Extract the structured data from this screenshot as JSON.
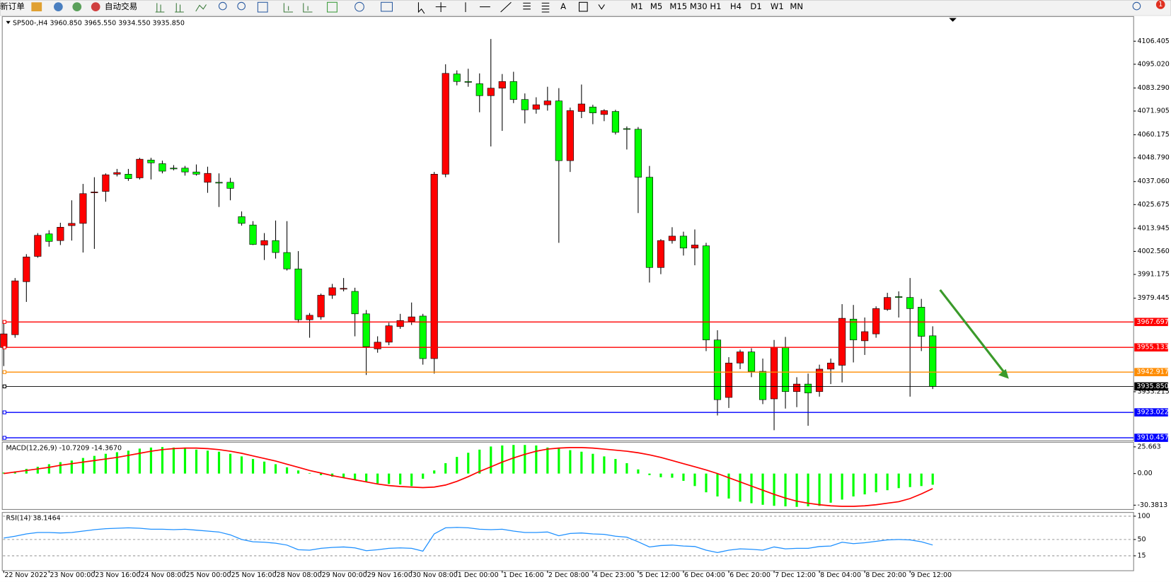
{
  "toolbar": {
    "new_order": "新订单",
    "auto_trading": "自动交易",
    "text_tool": "A",
    "badge": "1",
    "timeframes": [
      "M1",
      "M5",
      "M15",
      "M30",
      "H1",
      "H4",
      "D1",
      "W1",
      "MN"
    ]
  },
  "chart_data": [
    {
      "type": "candlestick",
      "title": "SP500-,H4 3960.850 3965.550 3934.550 3935.850",
      "x": [
        "22 Nov 2022",
        null,
        null,
        null,
        "23 Nov 00:00",
        null,
        null,
        null,
        "23 Nov 16:00",
        null,
        null,
        null,
        "24 Nov 08:00",
        null,
        null,
        null,
        "25 Nov 00:00",
        null,
        null,
        null,
        "25 Nov 16:00",
        null,
        null,
        null,
        "28 Nov 08:00",
        null,
        null,
        null,
        "29 Nov 00:00",
        null,
        null,
        null,
        "29 Nov 16:00",
        null,
        null,
        null,
        "30 Nov 08:00",
        null,
        null,
        null,
        "1 Dec 00:00",
        null,
        null,
        null,
        "1 Dec 16:00",
        null,
        null,
        null,
        "2 Dec 08:00",
        null,
        null,
        null,
        "4 Dec 23:00",
        null,
        null,
        null,
        "5 Dec 12:00",
        null,
        null,
        null,
        "6 Dec 04:00",
        null,
        null,
        null,
        "6 Dec 20:00",
        null,
        null,
        null,
        "7 Dec 12:00",
        null,
        null,
        null,
        "8 Dec 04:00",
        null,
        null,
        null,
        "8 Dec 20:00",
        null,
        null,
        null,
        "9 Dec 12:00",
        null,
        null
      ],
      "ohlc": [
        [
          3955.1,
          3968.0,
          3945.9,
          3961.8
        ],
        [
          3961.4,
          3989.4,
          3959.9,
          3988.0
        ],
        [
          3987.6,
          4001.2,
          3977.6,
          3999.8
        ],
        [
          4000.1,
          4011.6,
          3999.4,
          4010.5
        ],
        [
          4011.2,
          4013.0,
          4004.9,
          4007.5
        ],
        [
          4007.9,
          4016.7,
          4005.7,
          4014.5
        ],
        [
          4015.3,
          4027.8,
          4007.9,
          4016.4
        ],
        [
          4016.4,
          4035.9,
          4002.0,
          4031.1
        ],
        [
          4031.5,
          4039.2,
          4003.8,
          4031.9
        ],
        [
          4032.2,
          4041.1,
          4027.1,
          4040.4
        ],
        [
          4040.7,
          4043.3,
          4039.6,
          4041.5
        ],
        [
          4040.7,
          4043.3,
          4037.4,
          4038.5
        ],
        [
          4038.9,
          4048.8,
          4038.1,
          4048.1
        ],
        [
          4047.7,
          4048.8,
          4038.1,
          4046.3
        ],
        [
          4045.9,
          4047.4,
          4041.1,
          4042.2
        ],
        [
          4043.7,
          4045.2,
          4042.6,
          4043.3
        ],
        [
          4043.7,
          4044.8,
          4040.0,
          4041.8
        ],
        [
          4041.8,
          4045.5,
          4040.0,
          4040.7
        ],
        [
          4036.7,
          4044.4,
          4031.5,
          4041.1
        ],
        [
          4036.7,
          4041.1,
          4024.5,
          4036.3
        ],
        [
          4036.7,
          4038.9,
          4027.8,
          4033.7
        ],
        [
          4019.7,
          4022.3,
          4015.3,
          4016.4
        ],
        [
          4015.6,
          4017.5,
          4005.7,
          4006.0
        ],
        [
          4005.7,
          4011.6,
          3998.3,
          4007.9
        ],
        [
          4007.9,
          4017.8,
          3999.0,
          4002.0
        ],
        [
          4002.0,
          4017.5,
          3993.1,
          3993.9
        ],
        [
          3993.9,
          4002.7,
          3967.3,
          3968.8
        ],
        [
          3968.8,
          3972.1,
          3959.9,
          3971.0
        ],
        [
          3970.2,
          3981.7,
          3968.8,
          3980.9
        ],
        [
          3980.9,
          3986.5,
          3979.1,
          3984.6
        ],
        [
          3983.9,
          3989.4,
          3982.8,
          3984.3
        ],
        [
          3982.8,
          3984.6,
          3960.6,
          3971.7
        ],
        [
          3971.7,
          3973.6,
          3941.5,
          3955.5
        ],
        [
          3954.4,
          3960.6,
          3952.5,
          3957.7
        ],
        [
          3957.7,
          3967.3,
          3956.2,
          3965.8
        ],
        [
          3965.4,
          3971.7,
          3964.3,
          3968.4
        ],
        [
          3968.0,
          3977.3,
          3966.2,
          3970.2
        ],
        [
          3970.6,
          3971.7,
          3946.6,
          3949.6
        ],
        [
          3949.6,
          4041.8,
          3942.2,
          4040.7
        ],
        [
          4040.7,
          4095.0,
          4039.2,
          4090.5
        ],
        [
          4090.2,
          4092.0,
          4084.6,
          4086.5
        ],
        [
          4086.5,
          4092.8,
          4083.9,
          4086.1
        ],
        [
          4085.4,
          4090.5,
          4071.3,
          4079.5
        ],
        [
          4079.5,
          4107.5,
          4054.4,
          4083.2
        ],
        [
          4083.2,
          4090.2,
          4062.1,
          4086.5
        ],
        [
          4086.5,
          4091.3,
          4075.8,
          4077.6
        ],
        [
          4077.6,
          4080.6,
          4065.8,
          4072.5
        ],
        [
          4072.8,
          4078.7,
          4070.6,
          4075.0
        ],
        [
          4075.0,
          4083.9,
          4072.1,
          4076.9
        ],
        [
          4076.9,
          4083.2,
          4006.8,
          4047.4
        ],
        [
          4047.4,
          4073.6,
          4041.8,
          4072.1
        ],
        [
          4071.7,
          4085.0,
          4068.4,
          4075.4
        ],
        [
          4073.9,
          4075.0,
          4065.4,
          4071.0
        ],
        [
          4070.2,
          4072.8,
          4066.9,
          4072.1
        ],
        [
          4071.7,
          4072.5,
          4060.3,
          4061.4
        ],
        [
          4063.2,
          4064.3,
          4052.9,
          4062.9
        ],
        [
          4062.9,
          4064.0,
          4021.5,
          4039.2
        ],
        [
          4039.2,
          4044.8,
          3987.2,
          3994.6
        ],
        [
          3994.6,
          4008.6,
          3991.3,
          4007.9
        ],
        [
          4007.9,
          4014.5,
          4006.4,
          4010.1
        ],
        [
          4010.1,
          4012.3,
          4000.5,
          4004.2
        ],
        [
          4004.2,
          4013.4,
          3995.7,
          4005.7
        ],
        [
          4005.3,
          4006.8,
          3953.3,
          3958.8
        ],
        [
          3958.8,
          3963.6,
          3921.5,
          3929.3
        ],
        [
          3930.4,
          3950.3,
          3925.2,
          3947.4
        ],
        [
          3947.4,
          3954.0,
          3944.4,
          3952.9
        ],
        [
          3952.9,
          3954.7,
          3940.4,
          3943.3
        ],
        [
          3943.3,
          3949.6,
          3927.1,
          3929.3
        ],
        [
          3929.7,
          3958.8,
          3914.2,
          3955.1
        ],
        [
          3955.1,
          3960.3,
          3924.9,
          3933.3
        ],
        [
          3933.3,
          3940.4,
          3925.6,
          3937.0
        ],
        [
          3937.0,
          3942.2,
          3916.4,
          3932.6
        ],
        [
          3933.3,
          3946.6,
          3930.8,
          3944.4
        ],
        [
          3944.4,
          3949.6,
          3937.0,
          3947.4
        ],
        [
          3946.3,
          3976.5,
          3937.8,
          3969.5
        ],
        [
          3969.1,
          3976.1,
          3947.7,
          3958.8
        ],
        [
          3958.4,
          3969.9,
          3951.4,
          3962.9
        ],
        [
          3961.8,
          3975.4,
          3959.9,
          3974.3
        ],
        [
          3973.9,
          3982.1,
          3973.2,
          3979.8
        ],
        [
          3980.2,
          3982.8,
          3969.9,
          3979.8
        ],
        [
          3979.8,
          3989.4,
          3930.8,
          3974.3
        ],
        [
          3975.0,
          3979.1,
          3953.3,
          3960.6
        ],
        [
          3960.85,
          3965.55,
          3934.55,
          3935.85
        ]
      ],
      "up_color": "#ff0000",
      "down_color": "#00ff00",
      "ylim": [
        3909.0,
        4118.6
      ],
      "yticks": [
        4106.405,
        {
          "value": 4095.02,
          "label": "4095.020"
        },
        {
          "value": 4083.29,
          "label": "4083.290"
        },
        4071.905,
        4060.175,
        {
          "value": 4048.79,
          "label": "4048.790"
        },
        {
          "value": 4037.06,
          "label": "4037.060"
        },
        4025.675,
        4013.945,
        {
          "value": 4002.56,
          "label": "4002.560"
        },
        3991.175,
        3979.445,
        3933.215
      ],
      "hlines": [
        {
          "value": 3967.697,
          "color": "#ff0000"
        },
        {
          "value": 3955.133,
          "color": "#ff0000"
        },
        {
          "value": 3942.917,
          "color": "#ff8c00"
        },
        {
          "value": 3935.85,
          "label": "3935.850",
          "color": "#000000"
        },
        {
          "value": 3923.022,
          "color": "#0000ff"
        },
        {
          "value": 3910.457,
          "color": "#0000ff"
        }
      ]
    },
    {
      "type": "macd",
      "title": "MACD(12,26,9) -10.7209 -14.3670",
      "ylim": [
        -34.5,
        30.1
      ],
      "yticks": [
        25.663,
        {
          "value": 0,
          "label": "0.00"
        },
        -30.3813
      ],
      "series": [
        {
          "kind": "bar",
          "color": "#00ff00",
          "values": [
            1.0,
            2.0,
            4.5,
            6.5,
            9,
            11,
            12.5,
            15,
            17,
            19,
            20.5,
            22,
            24,
            25,
            25.5,
            25,
            24,
            23,
            22,
            21,
            19,
            16.5,
            14,
            11.5,
            9,
            6,
            3,
            0.5,
            -1.5,
            -3,
            -4,
            -6,
            -8,
            -9.5,
            -10,
            -10.5,
            -12,
            -5,
            3,
            10,
            16,
            20,
            23,
            26,
            27,
            27.5,
            27.5,
            27,
            25,
            24,
            22.5,
            21,
            19,
            16.5,
            14,
            10,
            4,
            -1.5,
            -3.5,
            -4,
            -7,
            -12,
            -18,
            -22,
            -24,
            -27,
            -28.5,
            -30,
            -31,
            -31.5,
            -32,
            -31.5,
            -31,
            -28,
            -25,
            -22,
            -20,
            -18,
            -16,
            -14,
            -13,
            -12,
            -10.7209
          ]
        },
        {
          "kind": "line",
          "color": "#ff0000",
          "values": [
            0,
            1.5,
            3,
            4.5,
            6,
            8,
            9.5,
            11,
            12.5,
            14,
            15.5,
            17.5,
            19.5,
            21.5,
            23,
            24,
            24.5,
            24.5,
            24,
            23,
            21.5,
            19.5,
            17,
            14.5,
            12,
            9,
            6,
            3,
            0.5,
            -2,
            -4,
            -6,
            -8,
            -10,
            -11.5,
            -12.5,
            -13,
            -13.5,
            -13,
            -11,
            -7.5,
            -3,
            2,
            6.5,
            11,
            15,
            18.5,
            21.5,
            23.5,
            24.5,
            25,
            25,
            24.5,
            23.5,
            22.5,
            21.5,
            20,
            18,
            15.5,
            12.5,
            9.5,
            6.5,
            3.5,
            0,
            -4,
            -8,
            -12,
            -16,
            -20,
            -23.5,
            -26.5,
            -28.5,
            -30,
            -31,
            -31.5,
            -31.5,
            -31,
            -30,
            -28.5,
            -27,
            -24,
            -19.5,
            -14.367
          ]
        }
      ]
    },
    {
      "type": "line",
      "title": "RSI(14) 38.1464",
      "ylim": [
        -17,
        108
      ],
      "yticks": [
        100,
        50,
        15
      ],
      "series": [
        {
          "color": "#1e90ff",
          "values": [
            53,
            57,
            62,
            65,
            65,
            64,
            65,
            68,
            71,
            73,
            74,
            75,
            74,
            72,
            72,
            71,
            72,
            70,
            68,
            66,
            60,
            50,
            45,
            44,
            42,
            38,
            28,
            27,
            31,
            33,
            34,
            32,
            26,
            28,
            31,
            32,
            31,
            25,
            62,
            75,
            76,
            75,
            72,
            71,
            72,
            68,
            65,
            65,
            66,
            58,
            63,
            64,
            62,
            61,
            57,
            55,
            45,
            34,
            37,
            38,
            36,
            35,
            27,
            22,
            27,
            30,
            29,
            27,
            34,
            30,
            31,
            31,
            35,
            36,
            44,
            41,
            43,
            46,
            49,
            50,
            49,
            45,
            38.1464
          ]
        }
      ]
    }
  ]
}
